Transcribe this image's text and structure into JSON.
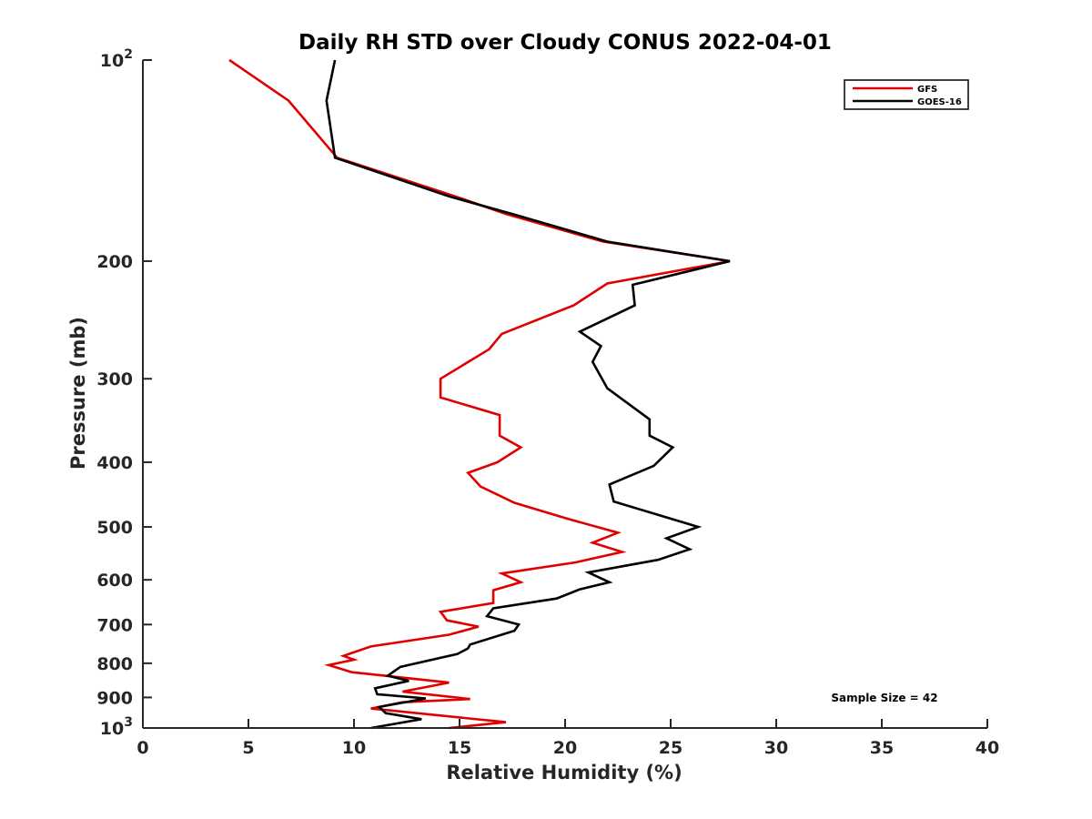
{
  "chart_data": {
    "type": "line",
    "title": "Daily RH STD over Cloudy CONUS 2022-04-01",
    "xlabel": "Relative Humidity (%)",
    "ylabel": "Pressure (mb)",
    "xlim": [
      0,
      40
    ],
    "ylim": [
      100,
      1000
    ],
    "y_scale": "log",
    "y_reversed": true,
    "grid": false,
    "legend_position": "top-right",
    "x_ticks": [
      "0",
      "5",
      "10",
      "15",
      "20",
      "25",
      "30",
      "35",
      "40"
    ],
    "x_tick_values": [
      0,
      5,
      10,
      15,
      20,
      25,
      30,
      35,
      40
    ],
    "y_ticks": [
      {
        "value": 100,
        "base": "10",
        "exp": "2"
      },
      {
        "value": 200,
        "label": "200"
      },
      {
        "value": 300,
        "label": "300"
      },
      {
        "value": 400,
        "label": "400"
      },
      {
        "value": 500,
        "label": "500"
      },
      {
        "value": 600,
        "label": "600"
      },
      {
        "value": 700,
        "label": "700"
      },
      {
        "value": 800,
        "label": "800"
      },
      {
        "value": 900,
        "label": "900"
      },
      {
        "value": 1000,
        "base": "10",
        "exp": "3"
      }
    ],
    "annotation": "Sample Size = 42",
    "series": [
      {
        "name": "GFS",
        "color": "#e00000",
        "points": [
          [
            4.1,
            100
          ],
          [
            6.9,
            115
          ],
          [
            9.2,
            140
          ],
          [
            14.8,
            160
          ],
          [
            17.2,
            170
          ],
          [
            21.8,
            187
          ],
          [
            27.8,
            200
          ],
          [
            22.0,
            216
          ],
          [
            20.4,
            233
          ],
          [
            17.0,
            257
          ],
          [
            16.4,
            271
          ],
          [
            14.1,
            300
          ],
          [
            14.1,
            320
          ],
          [
            16.9,
            340
          ],
          [
            16.9,
            365
          ],
          [
            17.9,
            380
          ],
          [
            16.8,
            400
          ],
          [
            15.4,
            415
          ],
          [
            16.0,
            435
          ],
          [
            17.6,
            460
          ],
          [
            20.0,
            485
          ],
          [
            22.5,
            510
          ],
          [
            21.3,
            528
          ],
          [
            22.7,
            545
          ],
          [
            20.5,
            565
          ],
          [
            17.0,
            587
          ],
          [
            17.9,
            605
          ],
          [
            16.6,
            622
          ],
          [
            16.6,
            650
          ],
          [
            14.1,
            670
          ],
          [
            14.4,
            690
          ],
          [
            15.9,
            705
          ],
          [
            14.5,
            725
          ],
          [
            10.8,
            755
          ],
          [
            9.5,
            780
          ],
          [
            10.0,
            790
          ],
          [
            8.8,
            805
          ],
          [
            9.9,
            825
          ],
          [
            14.5,
            855
          ],
          [
            12.3,
            882
          ],
          [
            15.5,
            905
          ],
          [
            12.3,
            915
          ],
          [
            10.8,
            935
          ],
          [
            17.2,
            980
          ],
          [
            14.5,
            1000
          ]
        ]
      },
      {
        "name": "GOES-16",
        "color": "#000000",
        "points": [
          [
            9.1,
            100
          ],
          [
            8.7,
            115
          ],
          [
            9.1,
            140
          ],
          [
            14.5,
            160
          ],
          [
            17.5,
            170
          ],
          [
            22.0,
            187
          ],
          [
            27.8,
            200
          ],
          [
            23.2,
            217
          ],
          [
            23.3,
            233
          ],
          [
            20.7,
            255
          ],
          [
            21.7,
            268
          ],
          [
            21.3,
            283
          ],
          [
            22.0,
            310
          ],
          [
            24.0,
            345
          ],
          [
            24.0,
            365
          ],
          [
            25.1,
            380
          ],
          [
            24.2,
            405
          ],
          [
            22.1,
            432
          ],
          [
            22.3,
            458
          ],
          [
            26.3,
            500
          ],
          [
            24.8,
            520
          ],
          [
            25.9,
            540
          ],
          [
            24.4,
            560
          ],
          [
            21.1,
            585
          ],
          [
            22.1,
            605
          ],
          [
            20.7,
            620
          ],
          [
            19.6,
            640
          ],
          [
            16.6,
            662
          ],
          [
            16.3,
            680
          ],
          [
            17.8,
            700
          ],
          [
            17.6,
            715
          ],
          [
            15.5,
            750
          ],
          [
            15.4,
            760
          ],
          [
            14.9,
            775
          ],
          [
            12.2,
            810
          ],
          [
            11.6,
            835
          ],
          [
            12.6,
            850
          ],
          [
            11.0,
            872
          ],
          [
            11.1,
            890
          ],
          [
            13.4,
            903
          ],
          [
            11.2,
            930
          ],
          [
            11.5,
            950
          ],
          [
            13.2,
            970
          ],
          [
            10.8,
            1000
          ]
        ]
      }
    ]
  }
}
